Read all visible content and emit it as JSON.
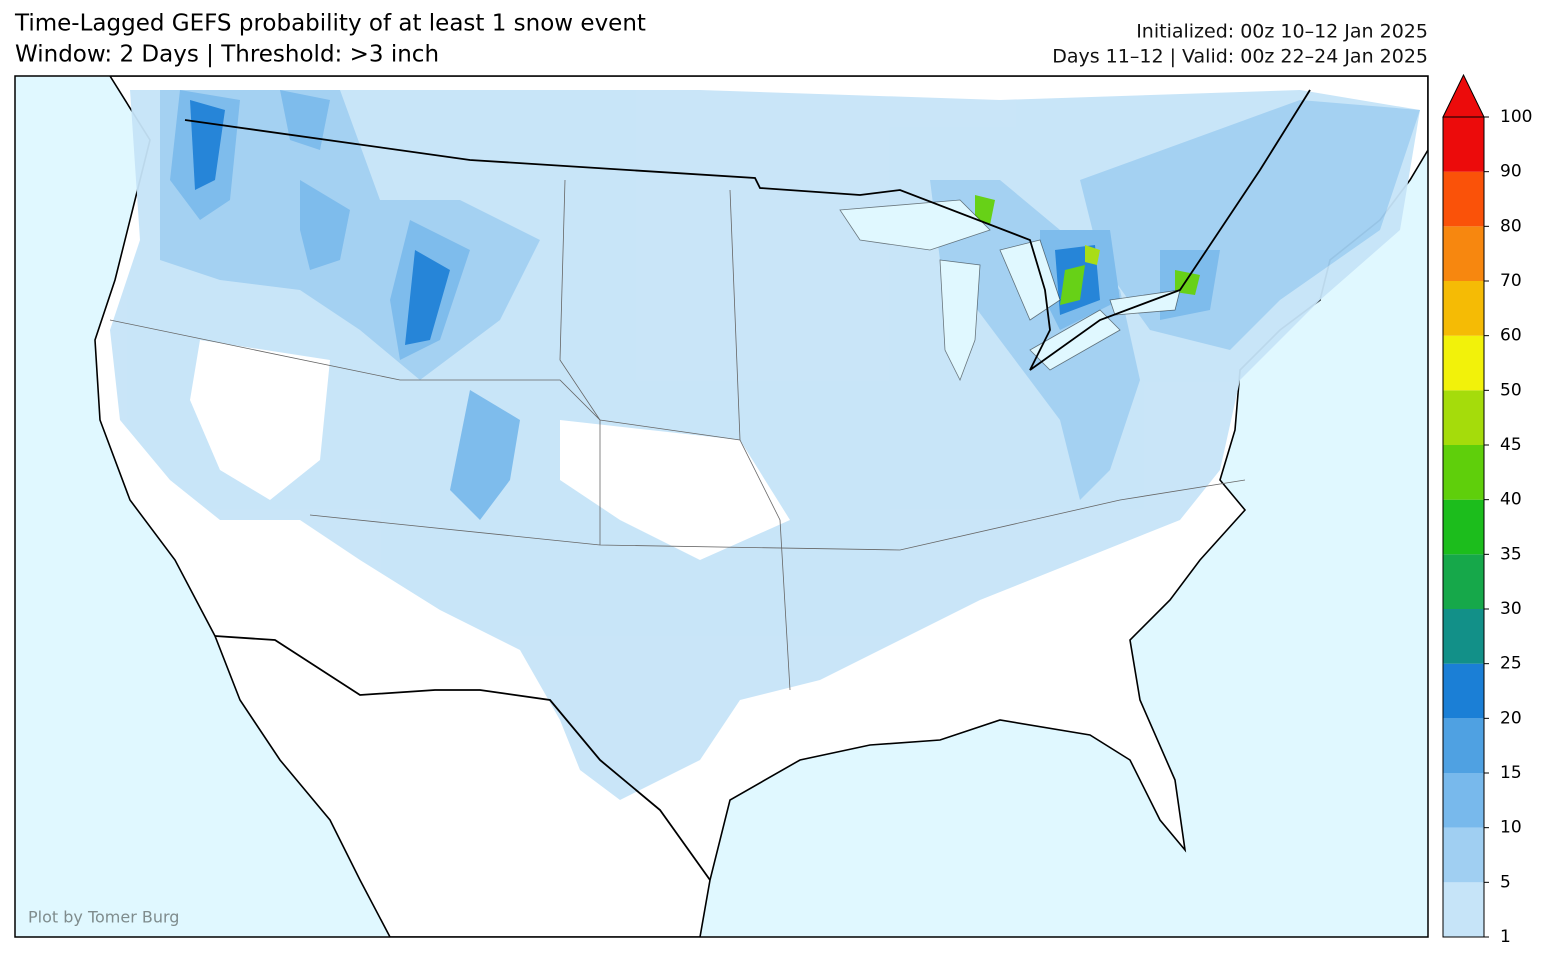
{
  "title": [
    "Time-Lagged GEFS probability of at least 1 snow event",
    "Window: 2 Days | Threshold: >3 inch"
  ],
  "info": [
    "Initialized: 00z 10–12 Jan 2025",
    "Days 11–12 | Valid: 00z 22–24 Jan 2025"
  ],
  "colorbar": {
    "levels": [
      1,
      5,
      10,
      15,
      20,
      25,
      30,
      35,
      40,
      45,
      50,
      60,
      70,
      80,
      90,
      100
    ],
    "colors": [
      "#c6e4f8",
      "#a0cff2",
      "#78b9ec",
      "#4fa1e2",
      "#1b7fd6",
      "#129088",
      "#16a84a",
      "#1cbd1c",
      "#5fcf0b",
      "#a5dc0b",
      "#f2f20a",
      "#f5bb05",
      "#f7870f",
      "#fa5209",
      "#ec0b0b"
    ],
    "over_color": "#ec0b0b"
  },
  "credit": "Plot by Tomer Burg"
}
